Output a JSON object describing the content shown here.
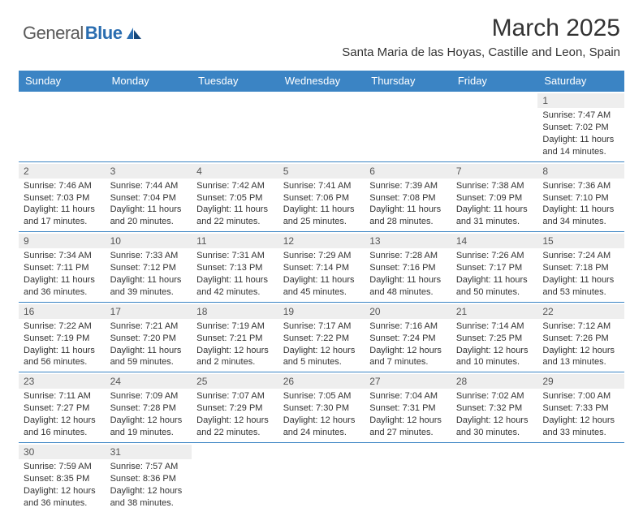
{
  "brand": {
    "text1": "General",
    "text2": "Blue"
  },
  "title": "March 2025",
  "location": "Santa Maria de las Hoyas, Castille and Leon, Spain",
  "colors": {
    "header_bg": "#3b84c4",
    "header_text": "#ffffff",
    "border": "#3b84c4",
    "daynum_bg": "#eeeeee",
    "body_text": "#333333",
    "logo_gray": "#5a5a5a",
    "logo_blue": "#2a6db0"
  },
  "weekdays": [
    "Sunday",
    "Monday",
    "Tuesday",
    "Wednesday",
    "Thursday",
    "Friday",
    "Saturday"
  ],
  "weeks": [
    [
      {
        "n": "",
        "sr": "",
        "ss": "",
        "dl": ""
      },
      {
        "n": "",
        "sr": "",
        "ss": "",
        "dl": ""
      },
      {
        "n": "",
        "sr": "",
        "ss": "",
        "dl": ""
      },
      {
        "n": "",
        "sr": "",
        "ss": "",
        "dl": ""
      },
      {
        "n": "",
        "sr": "",
        "ss": "",
        "dl": ""
      },
      {
        "n": "",
        "sr": "",
        "ss": "",
        "dl": ""
      },
      {
        "n": "1",
        "sr": "Sunrise: 7:47 AM",
        "ss": "Sunset: 7:02 PM",
        "dl": "Daylight: 11 hours and 14 minutes."
      }
    ],
    [
      {
        "n": "2",
        "sr": "Sunrise: 7:46 AM",
        "ss": "Sunset: 7:03 PM",
        "dl": "Daylight: 11 hours and 17 minutes."
      },
      {
        "n": "3",
        "sr": "Sunrise: 7:44 AM",
        "ss": "Sunset: 7:04 PM",
        "dl": "Daylight: 11 hours and 20 minutes."
      },
      {
        "n": "4",
        "sr": "Sunrise: 7:42 AM",
        "ss": "Sunset: 7:05 PM",
        "dl": "Daylight: 11 hours and 22 minutes."
      },
      {
        "n": "5",
        "sr": "Sunrise: 7:41 AM",
        "ss": "Sunset: 7:06 PM",
        "dl": "Daylight: 11 hours and 25 minutes."
      },
      {
        "n": "6",
        "sr": "Sunrise: 7:39 AM",
        "ss": "Sunset: 7:08 PM",
        "dl": "Daylight: 11 hours and 28 minutes."
      },
      {
        "n": "7",
        "sr": "Sunrise: 7:38 AM",
        "ss": "Sunset: 7:09 PM",
        "dl": "Daylight: 11 hours and 31 minutes."
      },
      {
        "n": "8",
        "sr": "Sunrise: 7:36 AM",
        "ss": "Sunset: 7:10 PM",
        "dl": "Daylight: 11 hours and 34 minutes."
      }
    ],
    [
      {
        "n": "9",
        "sr": "Sunrise: 7:34 AM",
        "ss": "Sunset: 7:11 PM",
        "dl": "Daylight: 11 hours and 36 minutes."
      },
      {
        "n": "10",
        "sr": "Sunrise: 7:33 AM",
        "ss": "Sunset: 7:12 PM",
        "dl": "Daylight: 11 hours and 39 minutes."
      },
      {
        "n": "11",
        "sr": "Sunrise: 7:31 AM",
        "ss": "Sunset: 7:13 PM",
        "dl": "Daylight: 11 hours and 42 minutes."
      },
      {
        "n": "12",
        "sr": "Sunrise: 7:29 AM",
        "ss": "Sunset: 7:14 PM",
        "dl": "Daylight: 11 hours and 45 minutes."
      },
      {
        "n": "13",
        "sr": "Sunrise: 7:28 AM",
        "ss": "Sunset: 7:16 PM",
        "dl": "Daylight: 11 hours and 48 minutes."
      },
      {
        "n": "14",
        "sr": "Sunrise: 7:26 AM",
        "ss": "Sunset: 7:17 PM",
        "dl": "Daylight: 11 hours and 50 minutes."
      },
      {
        "n": "15",
        "sr": "Sunrise: 7:24 AM",
        "ss": "Sunset: 7:18 PM",
        "dl": "Daylight: 11 hours and 53 minutes."
      }
    ],
    [
      {
        "n": "16",
        "sr": "Sunrise: 7:22 AM",
        "ss": "Sunset: 7:19 PM",
        "dl": "Daylight: 11 hours and 56 minutes."
      },
      {
        "n": "17",
        "sr": "Sunrise: 7:21 AM",
        "ss": "Sunset: 7:20 PM",
        "dl": "Daylight: 11 hours and 59 minutes."
      },
      {
        "n": "18",
        "sr": "Sunrise: 7:19 AM",
        "ss": "Sunset: 7:21 PM",
        "dl": "Daylight: 12 hours and 2 minutes."
      },
      {
        "n": "19",
        "sr": "Sunrise: 7:17 AM",
        "ss": "Sunset: 7:22 PM",
        "dl": "Daylight: 12 hours and 5 minutes."
      },
      {
        "n": "20",
        "sr": "Sunrise: 7:16 AM",
        "ss": "Sunset: 7:24 PM",
        "dl": "Daylight: 12 hours and 7 minutes."
      },
      {
        "n": "21",
        "sr": "Sunrise: 7:14 AM",
        "ss": "Sunset: 7:25 PM",
        "dl": "Daylight: 12 hours and 10 minutes."
      },
      {
        "n": "22",
        "sr": "Sunrise: 7:12 AM",
        "ss": "Sunset: 7:26 PM",
        "dl": "Daylight: 12 hours and 13 minutes."
      }
    ],
    [
      {
        "n": "23",
        "sr": "Sunrise: 7:11 AM",
        "ss": "Sunset: 7:27 PM",
        "dl": "Daylight: 12 hours and 16 minutes."
      },
      {
        "n": "24",
        "sr": "Sunrise: 7:09 AM",
        "ss": "Sunset: 7:28 PM",
        "dl": "Daylight: 12 hours and 19 minutes."
      },
      {
        "n": "25",
        "sr": "Sunrise: 7:07 AM",
        "ss": "Sunset: 7:29 PM",
        "dl": "Daylight: 12 hours and 22 minutes."
      },
      {
        "n": "26",
        "sr": "Sunrise: 7:05 AM",
        "ss": "Sunset: 7:30 PM",
        "dl": "Daylight: 12 hours and 24 minutes."
      },
      {
        "n": "27",
        "sr": "Sunrise: 7:04 AM",
        "ss": "Sunset: 7:31 PM",
        "dl": "Daylight: 12 hours and 27 minutes."
      },
      {
        "n": "28",
        "sr": "Sunrise: 7:02 AM",
        "ss": "Sunset: 7:32 PM",
        "dl": "Daylight: 12 hours and 30 minutes."
      },
      {
        "n": "29",
        "sr": "Sunrise: 7:00 AM",
        "ss": "Sunset: 7:33 PM",
        "dl": "Daylight: 12 hours and 33 minutes."
      }
    ],
    [
      {
        "n": "30",
        "sr": "Sunrise: 7:59 AM",
        "ss": "Sunset: 8:35 PM",
        "dl": "Daylight: 12 hours and 36 minutes."
      },
      {
        "n": "31",
        "sr": "Sunrise: 7:57 AM",
        "ss": "Sunset: 8:36 PM",
        "dl": "Daylight: 12 hours and 38 minutes."
      },
      {
        "n": "",
        "sr": "",
        "ss": "",
        "dl": ""
      },
      {
        "n": "",
        "sr": "",
        "ss": "",
        "dl": ""
      },
      {
        "n": "",
        "sr": "",
        "ss": "",
        "dl": ""
      },
      {
        "n": "",
        "sr": "",
        "ss": "",
        "dl": ""
      },
      {
        "n": "",
        "sr": "",
        "ss": "",
        "dl": ""
      }
    ]
  ]
}
